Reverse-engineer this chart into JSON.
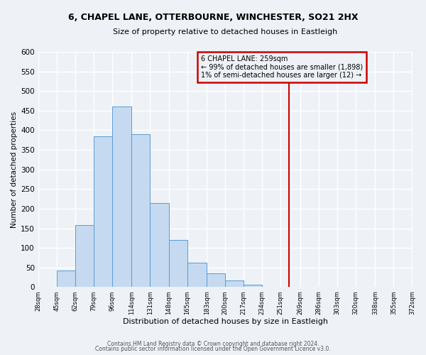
{
  "title": "6, CHAPEL LANE, OTTERBOURNE, WINCHESTER, SO21 2HX",
  "subtitle": "Size of property relative to detached houses in Eastleigh",
  "xlabel": "Distribution of detached houses by size in Eastleigh",
  "ylabel": "Number of detached properties",
  "bin_edges": [
    28,
    45,
    62,
    79,
    96,
    114,
    131,
    148,
    165,
    183,
    200,
    217,
    234,
    251,
    269,
    286,
    303,
    320,
    338,
    355,
    372
  ],
  "bar_heights": [
    0,
    42,
    158,
    385,
    460,
    390,
    215,
    120,
    63,
    35,
    18,
    7,
    0,
    0,
    0,
    0,
    0,
    0,
    0,
    0
  ],
  "bar_color": "#c5daf0",
  "bar_edge_color": "#5b9bd5",
  "vline_x": 259,
  "vline_color": "#cc0000",
  "ylim": [
    0,
    600
  ],
  "yticks": [
    0,
    50,
    100,
    150,
    200,
    250,
    300,
    350,
    400,
    450,
    500,
    550,
    600
  ],
  "annotation_title": "6 CHAPEL LANE: 259sqm",
  "annotation_line1": "← 99% of detached houses are smaller (1,898)",
  "annotation_line2": "1% of semi-detached houses are larger (12) →",
  "annotation_box_color": "#cc0000",
  "footer_line1": "Contains HM Land Registry data © Crown copyright and database right 2024.",
  "footer_line2": "Contains public sector information licensed under the Open Government Licence v3.0.",
  "background_color": "#eef2f7",
  "grid_color": "#ffffff"
}
